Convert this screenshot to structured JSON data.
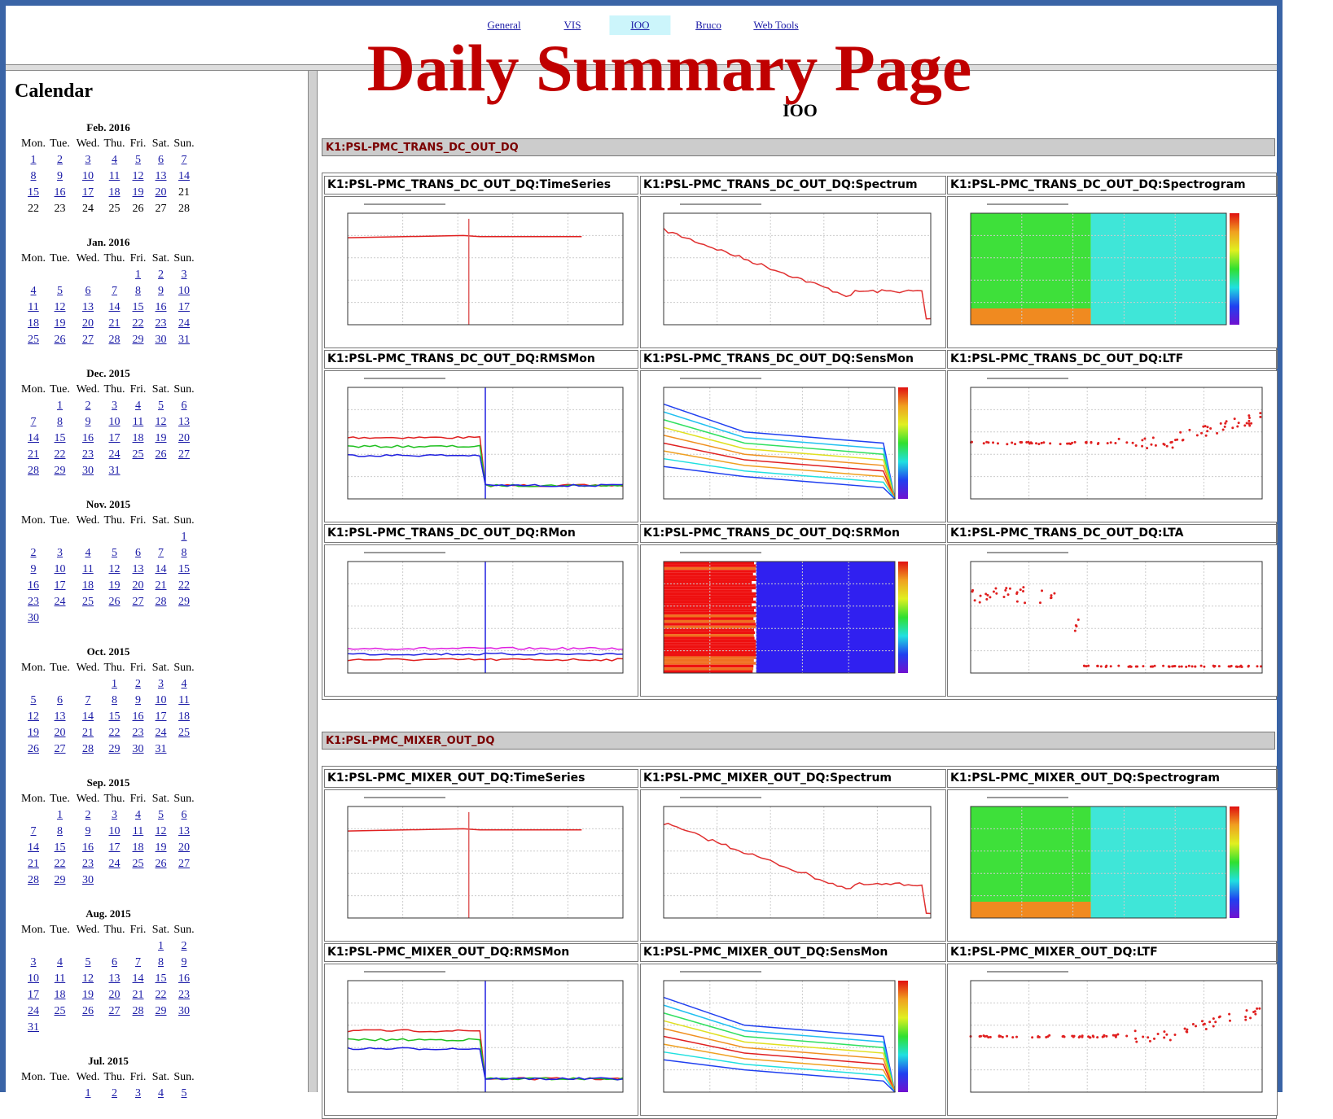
{
  "nav": [
    "General",
    "VIS",
    "IOO",
    "Bruco",
    "Web Tools"
  ],
  "active_nav_index": 2,
  "title": "Daily Summary Page",
  "sidebar": {
    "heading": "Calendar",
    "weekdays": [
      "Mon.",
      "Tue.",
      "Wed.",
      "Thu.",
      "Fri.",
      "Sat.",
      "Sun."
    ],
    "months": [
      {
        "name": "Feb. 2016",
        "last_linked_day": 20,
        "weeks": [
          [
            1,
            2,
            3,
            4,
            5,
            6,
            7
          ],
          [
            8,
            9,
            10,
            11,
            12,
            13,
            14
          ],
          [
            15,
            16,
            17,
            18,
            19,
            20,
            21
          ],
          [
            22,
            23,
            24,
            25,
            26,
            27,
            28
          ]
        ]
      },
      {
        "name": "Jan. 2016",
        "weeks": [
          [
            null,
            null,
            null,
            null,
            1,
            2,
            3
          ],
          [
            4,
            5,
            6,
            7,
            8,
            9,
            10
          ],
          [
            11,
            12,
            13,
            14,
            15,
            16,
            17
          ],
          [
            18,
            19,
            20,
            21,
            22,
            23,
            24
          ],
          [
            25,
            26,
            27,
            28,
            29,
            30,
            31
          ]
        ]
      },
      {
        "name": "Dec. 2015",
        "weeks": [
          [
            null,
            1,
            2,
            3,
            4,
            5,
            6
          ],
          [
            7,
            8,
            9,
            10,
            11,
            12,
            13
          ],
          [
            14,
            15,
            16,
            17,
            18,
            19,
            20
          ],
          [
            21,
            22,
            23,
            24,
            25,
            26,
            27
          ],
          [
            28,
            29,
            30,
            31,
            null,
            null,
            null
          ]
        ]
      },
      {
        "name": "Nov. 2015",
        "weeks": [
          [
            null,
            null,
            null,
            null,
            null,
            null,
            1
          ],
          [
            2,
            3,
            4,
            5,
            6,
            7,
            8
          ],
          [
            9,
            10,
            11,
            12,
            13,
            14,
            15
          ],
          [
            16,
            17,
            18,
            19,
            20,
            21,
            22
          ],
          [
            23,
            24,
            25,
            26,
            27,
            28,
            29
          ],
          [
            30,
            null,
            null,
            null,
            null,
            null,
            null
          ]
        ]
      },
      {
        "name": "Oct. 2015",
        "weeks": [
          [
            null,
            null,
            null,
            1,
            2,
            3,
            4
          ],
          [
            5,
            6,
            7,
            8,
            9,
            10,
            11
          ],
          [
            12,
            13,
            14,
            15,
            16,
            17,
            18
          ],
          [
            19,
            20,
            21,
            22,
            23,
            24,
            25
          ],
          [
            26,
            27,
            28,
            29,
            30,
            31,
            null
          ]
        ]
      },
      {
        "name": "Sep. 2015",
        "weeks": [
          [
            null,
            1,
            2,
            3,
            4,
            5,
            6
          ],
          [
            7,
            8,
            9,
            10,
            11,
            12,
            13
          ],
          [
            14,
            15,
            16,
            17,
            18,
            19,
            20
          ],
          [
            21,
            22,
            23,
            24,
            25,
            26,
            27
          ],
          [
            28,
            29,
            30,
            null,
            null,
            null,
            null
          ]
        ]
      },
      {
        "name": "Aug. 2015",
        "weeks": [
          [
            null,
            null,
            null,
            null,
            null,
            1,
            2
          ],
          [
            3,
            4,
            5,
            6,
            7,
            8,
            9
          ],
          [
            10,
            11,
            12,
            13,
            14,
            15,
            16
          ],
          [
            17,
            18,
            19,
            20,
            21,
            22,
            23
          ],
          [
            24,
            25,
            26,
            27,
            28,
            29,
            30
          ],
          [
            31,
            null,
            null,
            null,
            null,
            null,
            null
          ]
        ]
      },
      {
        "name": "Jul. 2015",
        "weeks": [
          [
            null,
            null,
            1,
            2,
            3,
            4,
            5
          ]
        ]
      }
    ]
  },
  "page_heading": "IOO",
  "sections": [
    {
      "channel": "K1:PSL-PMC_TRANS_DC_OUT_DQ",
      "plots": [
        {
          "title": "K1:PSL-PMC_TRANS_DC_OUT_DQ:TimeSeries"
        },
        {
          "title": "K1:PSL-PMC_TRANS_DC_OUT_DQ:Spectrum"
        },
        {
          "title": "K1:PSL-PMC_TRANS_DC_OUT_DQ:Spectrogram"
        },
        {
          "title": "K1:PSL-PMC_TRANS_DC_OUT_DQ:RMSMon"
        },
        {
          "title": "K1:PSL-PMC_TRANS_DC_OUT_DQ:SensMon"
        },
        {
          "title": "K1:PSL-PMC_TRANS_DC_OUT_DQ:LTF"
        },
        {
          "title": "K1:PSL-PMC_TRANS_DC_OUT_DQ:RMon"
        },
        {
          "title": "K1:PSL-PMC_TRANS_DC_OUT_DQ:SRMon"
        },
        {
          "title": "K1:PSL-PMC_TRANS_DC_OUT_DQ:LTA"
        }
      ]
    },
    {
      "channel": "K1:PSL-PMC_MIXER_OUT_DQ",
      "plots": [
        {
          "title": "K1:PSL-PMC_MIXER_OUT_DQ:TimeSeries"
        },
        {
          "title": "K1:PSL-PMC_MIXER_OUT_DQ:Spectrum"
        },
        {
          "title": "K1:PSL-PMC_MIXER_OUT_DQ:Spectrogram"
        },
        {
          "title": "K1:PSL-PMC_MIXER_OUT_DQ:RMSMon"
        },
        {
          "title": "K1:PSL-PMC_MIXER_OUT_DQ:SensMon"
        },
        {
          "title": "K1:PSL-PMC_MIXER_OUT_DQ:LTF"
        }
      ]
    }
  ]
}
